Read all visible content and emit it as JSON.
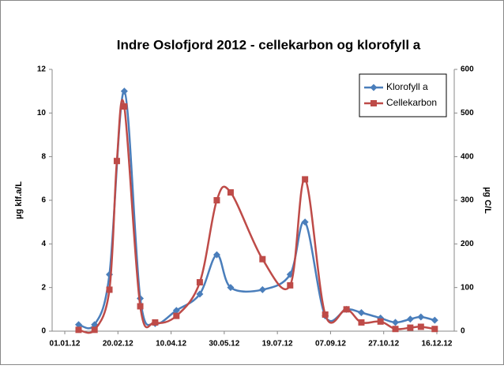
{
  "chart_data": {
    "type": "line",
    "title": "Indre Oslofjord 2012 - cellekarbon og klorofyll a",
    "y_label": "µg klf.a/L",
    "y2_label": "µg C/L",
    "xlim": [
      "01.01.12",
      "16.12.12"
    ],
    "xticks": [
      "01.01.12",
      "20.02.12",
      "10.04.12",
      "30.05.12",
      "19.07.12",
      "07.09.12",
      "27.10.12",
      "16.12.12"
    ],
    "ylim": [
      0,
      12
    ],
    "yticks": [
      0,
      2,
      4,
      6,
      8,
      10,
      12
    ],
    "y2lim": [
      0,
      600
    ],
    "y2ticks": [
      0,
      100,
      200,
      300,
      400,
      500,
      600
    ],
    "smooth": true,
    "legend": "top-right",
    "series": [
      {
        "name": "Klorofyll a",
        "color": "#4a7ebb",
        "marker": "diamond",
        "x": [
          "14.01.12",
          "29.01.12",
          "12.02.12",
          "26.02.12",
          "12.03.12",
          "26.03.12",
          "15.04.12",
          "07.05.12",
          "23.05.12",
          "05.06.12",
          "05.07.12",
          "31.07.12",
          "14.08.12",
          "02.09.12",
          "22.09.12",
          "06.10.12",
          "24.10.12",
          "07.11.12",
          "21.11.12",
          "01.12.12",
          "14.12.12"
        ],
        "values": [
          0.3,
          0.3,
          2.6,
          11.0,
          1.5,
          0.35,
          0.95,
          1.7,
          3.5,
          2.0,
          1.9,
          2.6,
          5.0,
          0.7,
          1.0,
          0.85,
          0.6,
          0.4,
          0.55,
          0.65,
          0.5
        ]
      },
      {
        "name": "Cellekarbon",
        "color": "#be4b48",
        "marker": "square",
        "axis": "y2",
        "x": [
          "14.01.12",
          "29.01.12",
          "12.02.12",
          "19.02.12",
          "26.02.12",
          "12.03.12",
          "26.03.12",
          "15.04.12",
          "07.05.12",
          "23.05.12",
          "05.06.12",
          "05.07.12",
          "31.07.12",
          "14.08.12",
          "02.09.12",
          "22.09.12",
          "06.10.12",
          "24.10.12",
          "07.11.12",
          "21.11.12",
          "01.12.12",
          "14.12.12"
        ],
        "values": [
          3,
          3,
          95,
          390,
          515,
          57,
          20,
          35,
          112,
          300,
          318,
          165,
          105,
          348,
          38,
          50,
          20,
          22,
          5,
          8,
          10,
          5
        ]
      }
    ]
  }
}
